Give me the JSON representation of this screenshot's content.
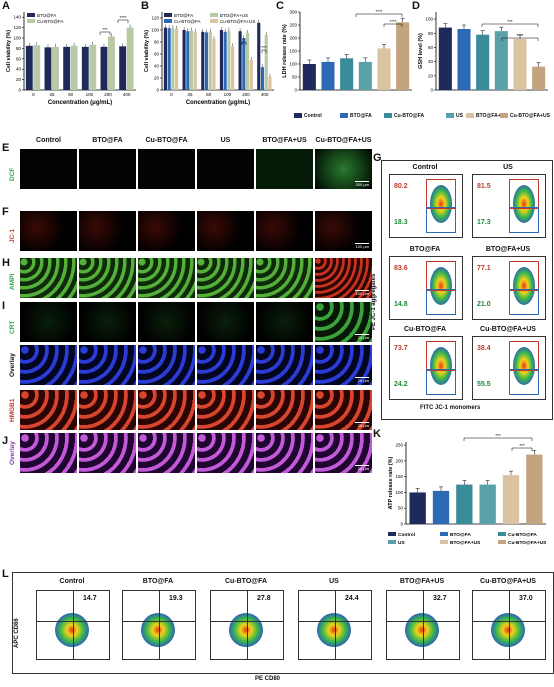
{
  "panels": {
    "A": "A",
    "B": "B",
    "C": "C",
    "D": "D",
    "E": "E",
    "F": "F",
    "G": "G",
    "H": "H",
    "I": "I",
    "J": "J",
    "K": "K",
    "L": "L"
  },
  "colors": {
    "control": "#1f2a5a",
    "bto": "#2d6ab5",
    "cubto": "#3a8c9a",
    "us": "#5aa0a8",
    "btous": "#d9c3a0",
    "cubtous": "#c2a57f",
    "dcf": "#2fa84a",
    "jc1": "#c33a2a",
    "ampi": "#2fa84a",
    "crt": "#2fa84a",
    "dapi": "#2233aa",
    "hmgb1": "#c0392b",
    "overlay2": "#8a3aa5"
  },
  "panelA": {
    "chart_data": {
      "type": "bar",
      "categories": [
        "0",
        "25",
        "50",
        "100",
        "200",
        "400"
      ],
      "series": [
        {
          "name": "BTO@FA",
          "values": [
            85,
            82,
            83,
            83,
            83,
            84
          ]
        },
        {
          "name": "Cu-BTO@FA",
          "values": [
            86,
            83,
            85,
            87,
            103,
            120
          ]
        }
      ],
      "xlabel": "Concentration (μg/mL)",
      "ylabel": "Cell viability (%)",
      "ylim": [
        0,
        150
      ],
      "yticks": [
        "0",
        "20",
        "40",
        "60",
        "80",
        "100",
        "120",
        "140"
      ],
      "legend": [
        "BTO@FA",
        "Cu-BTO@FA"
      ],
      "sig": [
        "***",
        "****"
      ]
    }
  },
  "panelB": {
    "chart_data": {
      "type": "bar",
      "categories": [
        "0",
        "25",
        "50",
        "100",
        "200",
        "400"
      ],
      "series": [
        {
          "name": "BTO@FA",
          "values": [
            104,
            100,
            97,
            100,
            98,
            112
          ]
        },
        {
          "name": "Cu-BTO@FA",
          "values": [
            103,
            98,
            96,
            97,
            86,
            38
          ]
        },
        {
          "name": "BTO@FA+US",
          "values": [
            103,
            99,
            97,
            99,
            95,
            92
          ]
        },
        {
          "name": "Cu-BTO@FA+US",
          "values": [
            102,
            97,
            85,
            73,
            50,
            22
          ]
        }
      ],
      "xlabel": "Concentration (μg/mL)",
      "ylabel": "Cell viability (%)",
      "ylim": [
        0,
        130
      ],
      "yticks": [
        "0",
        "20",
        "40",
        "60",
        "80",
        "100",
        "120"
      ],
      "legend": [
        "BTO@FA",
        "Cu-BTO@FA",
        "BTO@FA+US",
        "Cu-BTO@FA+US"
      ],
      "sig": [
        "**",
        "***"
      ]
    }
  },
  "panelC": {
    "chart_data": {
      "type": "bar",
      "categories": [
        "Control",
        "BTO@FA",
        "Cu-BTO@FA",
        "US",
        "BTO@FA+US",
        "Cu-BTO@FA+US"
      ],
      "values": [
        100,
        108,
        122,
        108,
        160,
        260
      ],
      "ylabel": "LDH release rate (%)",
      "ylim": [
        0,
        300
      ],
      "yticks": [
        "0",
        "50",
        "100",
        "150",
        "200",
        "250",
        "300"
      ],
      "sig": [
        "****",
        "****"
      ]
    }
  },
  "panelD": {
    "chart_data": {
      "type": "bar",
      "categories": [
        "Control",
        "BTO@FA",
        "Cu-BTO@FA",
        "US",
        "BTO@FA+US",
        "Cu-BTO@FA+US"
      ],
      "values": [
        88,
        86,
        78,
        83,
        72,
        33
      ],
      "ylabel": "GSH level (%)",
      "ylim": [
        0,
        110
      ],
      "yticks": [
        "0",
        "20",
        "40",
        "60",
        "80",
        "100"
      ],
      "sig": [
        "***",
        "****"
      ]
    }
  },
  "legendCD": [
    "Control",
    "BTO@FA",
    "Cu-BTO@FA",
    "US",
    "BTO@FA+US",
    "Cu-BTO@FA+US"
  ],
  "grid": {
    "columns": [
      "Control",
      "BTO@FA",
      "Cu-BTO@FA",
      "US",
      "BTO@FA+US",
      "Cu-BTO@FA+US"
    ],
    "rows": [
      "DCF",
      "JC-1",
      "AMPI",
      "CRT",
      "Overlay",
      "HMGB1",
      "Overlay"
    ],
    "scales": [
      "200 μm",
      "100 μm",
      "100 μm",
      "20 μm",
      "20 μm",
      "20 μm",
      "20 μm"
    ]
  },
  "panelG": {
    "ylabel": "PE JC-1 aggregates",
    "xlabel": "FITC JC-1 monomers",
    "plots": [
      {
        "title": "Control",
        "top": "80.2",
        "bottom": "18.3"
      },
      {
        "title": "US",
        "top": "81.5",
        "bottom": "17.3"
      },
      {
        "title": "BTO@FA",
        "top": "83.6",
        "bottom": "14.8"
      },
      {
        "title": "BTO@FA+US",
        "top": "77.1",
        "bottom": "21.0"
      },
      {
        "title": "Cu-BTO@FA",
        "top": "73.7",
        "bottom": "24.2"
      },
      {
        "title": "Cu-BTO@FA+US",
        "top": "38.4",
        "bottom": "55.5"
      }
    ]
  },
  "panelK": {
    "chart_data": {
      "type": "bar",
      "categories": [
        "Control",
        "BTO@FA",
        "Cu-BTO@FA",
        "US",
        "BTO@FA+US",
        "Cu-BTO@FA+US"
      ],
      "values": [
        100,
        105,
        125,
        125,
        155,
        220
      ],
      "ylabel": "ATP release rate (%)",
      "ylim": [
        0,
        260
      ],
      "yticks": [
        "0",
        "50",
        "100",
        "150",
        "200",
        "250"
      ],
      "sig": [
        "***",
        "***"
      ]
    },
    "legend": [
      "Control",
      "BTO@FA",
      "Cu-BTO@FA",
      "US",
      "BTO@FA+US",
      "Cu-BTO@FA+US"
    ]
  },
  "panelL": {
    "ylabel": "APC CD86",
    "xlabel": "PE CD80",
    "plots": [
      {
        "title": "Control",
        "value": "14.7"
      },
      {
        "title": "BTO@FA",
        "value": "19.3"
      },
      {
        "title": "Cu-BTO@FA",
        "value": "27.8"
      },
      {
        "title": "US",
        "value": "24.4"
      },
      {
        "title": "BTO@FA+US",
        "value": "32.7"
      },
      {
        "title": "Cu-BTO@FA+US",
        "value": "37.0"
      }
    ]
  }
}
